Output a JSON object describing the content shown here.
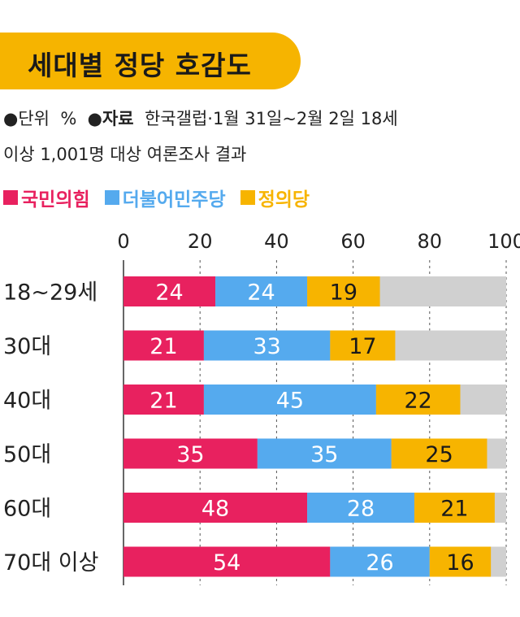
{
  "title": "세대별 정당 호감도",
  "meta": {
    "bullet": "●",
    "unit_label": "단위",
    "unit_value": "%",
    "source_label": "자료",
    "source_line1": "한국갤럽·1월 31일~2월 2일 18세",
    "source_line2": "이상 1,001명 대상 여론조사 결과"
  },
  "colors": {
    "title_bg": "#f6b400",
    "remainder": "#d0d0d0"
  },
  "chart_data": {
    "type": "bar",
    "orientation": "horizontal",
    "stacked": true,
    "xlim": [
      0,
      100
    ],
    "xticks": [
      0,
      20,
      40,
      60,
      80,
      100
    ],
    "grid": true,
    "legend_position": "top-left",
    "categories": [
      "18~29세",
      "30대",
      "40대",
      "50대",
      "60대",
      "70대 이상"
    ],
    "series": [
      {
        "name": "국민의힘",
        "color": "#e8215f",
        "values": [
          24,
          21,
          21,
          35,
          48,
          54
        ]
      },
      {
        "name": "더불어민주당",
        "color": "#55aaee",
        "values": [
          24,
          33,
          45,
          35,
          28,
          26
        ]
      },
      {
        "name": "정의당",
        "color": "#f7b400",
        "values": [
          19,
          17,
          22,
          25,
          21,
          16
        ]
      }
    ]
  }
}
